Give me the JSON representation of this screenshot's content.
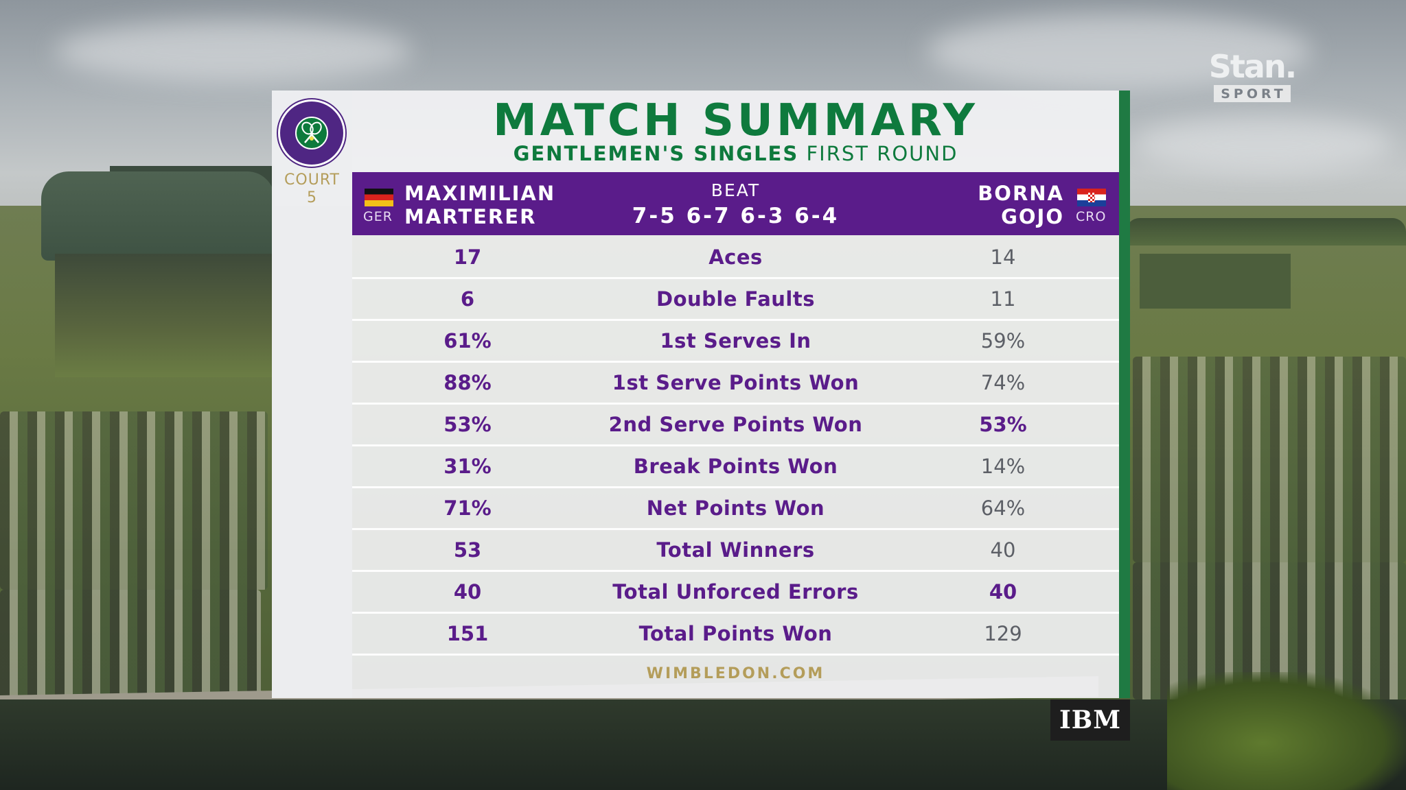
{
  "broadcaster": {
    "name": "Stan.",
    "sub": "SPORT"
  },
  "header": {
    "title": "MATCH SUMMARY",
    "subtitle_bold": "GENTLEMEN'S SINGLES",
    "subtitle_rest": "FIRST ROUND",
    "court_label": "COURT",
    "court_number": "5"
  },
  "match": {
    "player1": {
      "first": "MAXIMILIAN",
      "last": "MARTERER",
      "country": "GER",
      "flag": "germany-flag-icon"
    },
    "player2": {
      "first": "BORNA",
      "last": "GOJO",
      "country": "CRO",
      "flag": "croatia-flag-icon"
    },
    "result_word": "BEAT",
    "sets": "7-5 6-7 6-3 6-4"
  },
  "stats": [
    {
      "label": "Aces",
      "p1": "17",
      "p2": "14",
      "p2_highlight": false
    },
    {
      "label": "Double Faults",
      "p1": "6",
      "p2": "11",
      "p2_highlight": false
    },
    {
      "label": "1st Serves In",
      "p1": "61%",
      "p2": "59%",
      "p2_highlight": false
    },
    {
      "label": "1st Serve Points Won",
      "p1": "88%",
      "p2": "74%",
      "p2_highlight": false
    },
    {
      "label": "2nd Serve Points Won",
      "p1": "53%",
      "p2": "53%",
      "p2_highlight": true
    },
    {
      "label": "Break Points Won",
      "p1": "31%",
      "p2": "14%",
      "p2_highlight": false
    },
    {
      "label": "Net Points Won",
      "p1": "71%",
      "p2": "64%",
      "p2_highlight": false
    },
    {
      "label": "Total Winners",
      "p1": "53",
      "p2": "40",
      "p2_highlight": false
    },
    {
      "label": "Total Unforced Errors",
      "p1": "40",
      "p2": "40",
      "p2_highlight": true
    },
    {
      "label": "Total Points Won",
      "p1": "151",
      "p2": "129",
      "p2_highlight": false
    }
  ],
  "footer": {
    "site": "WIMBLEDON.COM"
  },
  "sponsor": {
    "name": "IBM"
  },
  "colors": {
    "wimbledon_purple": "#5a1c8a",
    "wimbledon_green": "#0e7a3d",
    "gold": "#b49d5a"
  }
}
